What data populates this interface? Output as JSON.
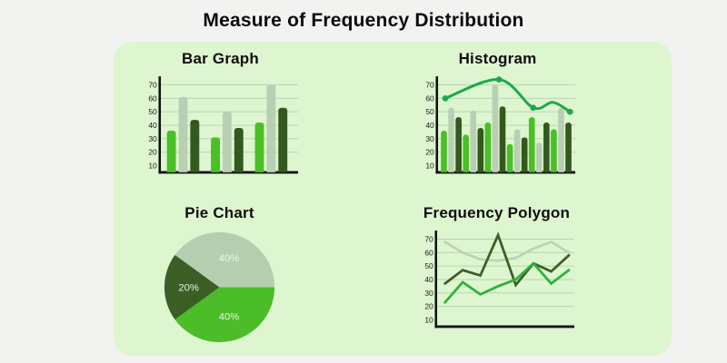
{
  "page": {
    "title": "Measure of Frequency Distribution",
    "background_color": "#f2f2f0",
    "panel_color": "#ddf6d0"
  },
  "palette": {
    "bright_green": "#4abf27",
    "pale_green": "#b9cfb4",
    "dark_green": "#33591e",
    "line_green": "#1ea84a",
    "poly_bright": "#2fb13a",
    "poly_pale": "#bdd2b8",
    "poly_dark": "#3f5e27",
    "pie_bright": "#4abd28",
    "pie_pale": "#b5ceb0",
    "pie_dark": "#3a5e24",
    "axis_color": "#111111",
    "grid_color": "#a8c2a4",
    "tick_color": "#1c1c1c",
    "pie_label_color": "#edf3e9"
  },
  "chart_data": [
    {
      "id": "bar_graph",
      "type": "bar",
      "title": "Bar Graph",
      "yticks": [
        70,
        60,
        50,
        40,
        30,
        20,
        10
      ],
      "ylim": [
        5,
        75
      ],
      "grid": true,
      "bar_color_cycle": [
        "bright_green",
        "pale_green",
        "dark_green"
      ],
      "groups": [
        [
          36,
          61,
          44
        ],
        [
          31,
          50,
          38
        ],
        [
          42,
          70,
          53
        ]
      ]
    },
    {
      "id": "histogram",
      "type": "histogram",
      "title": "Histogram",
      "yticks": [
        70,
        60,
        50,
        40,
        30,
        20,
        10
      ],
      "ylim": [
        5,
        75
      ],
      "grid": true,
      "bar_color_cycle": [
        "bright_green",
        "pale_green",
        "dark_green"
      ],
      "values": [
        36,
        53,
        46,
        33,
        51,
        38,
        42,
        70,
        54,
        26,
        37,
        31,
        46,
        27,
        42,
        37,
        53,
        42
      ],
      "overlay_line": {
        "color_key": "line_green",
        "points": [
          {
            "x": 0.03,
            "v": 60
          },
          {
            "x": 0.44,
            "v": 74
          },
          {
            "x": 0.7,
            "v": 53
          },
          {
            "x": 0.85,
            "v": 57
          },
          {
            "x": 0.98,
            "v": 50
          }
        ],
        "dot_indices": [
          0,
          1,
          2,
          4
        ]
      }
    },
    {
      "id": "pie_chart",
      "type": "pie",
      "title": "Pie Chart",
      "slices_clockwise_from_east": [
        {
          "label": "40%",
          "value": 40,
          "color_key": "pie_bright"
        },
        {
          "label": "20%",
          "value": 20,
          "color_key": "pie_dark"
        },
        {
          "label": "40%",
          "value": 40,
          "color_key": "pie_pale"
        }
      ]
    },
    {
      "id": "frequency_polygon",
      "type": "line",
      "title": "Frequency Polygon",
      "yticks": [
        70,
        60,
        50,
        40,
        30,
        20,
        10
      ],
      "ylim": [
        5,
        75
      ],
      "grid": true,
      "series": [
        {
          "name": "pale-line",
          "color_key": "poly_pale",
          "values": [
            68,
            60,
            55,
            54,
            56,
            63,
            68,
            60
          ]
        },
        {
          "name": "dark-line",
          "color_key": "poly_dark",
          "values": [
            37,
            47,
            43,
            73,
            36,
            52,
            46,
            58
          ]
        },
        {
          "name": "bright-line",
          "color_key": "poly_bright",
          "values": [
            23,
            38,
            29,
            35,
            40,
            52,
            37,
            47
          ]
        }
      ]
    }
  ]
}
